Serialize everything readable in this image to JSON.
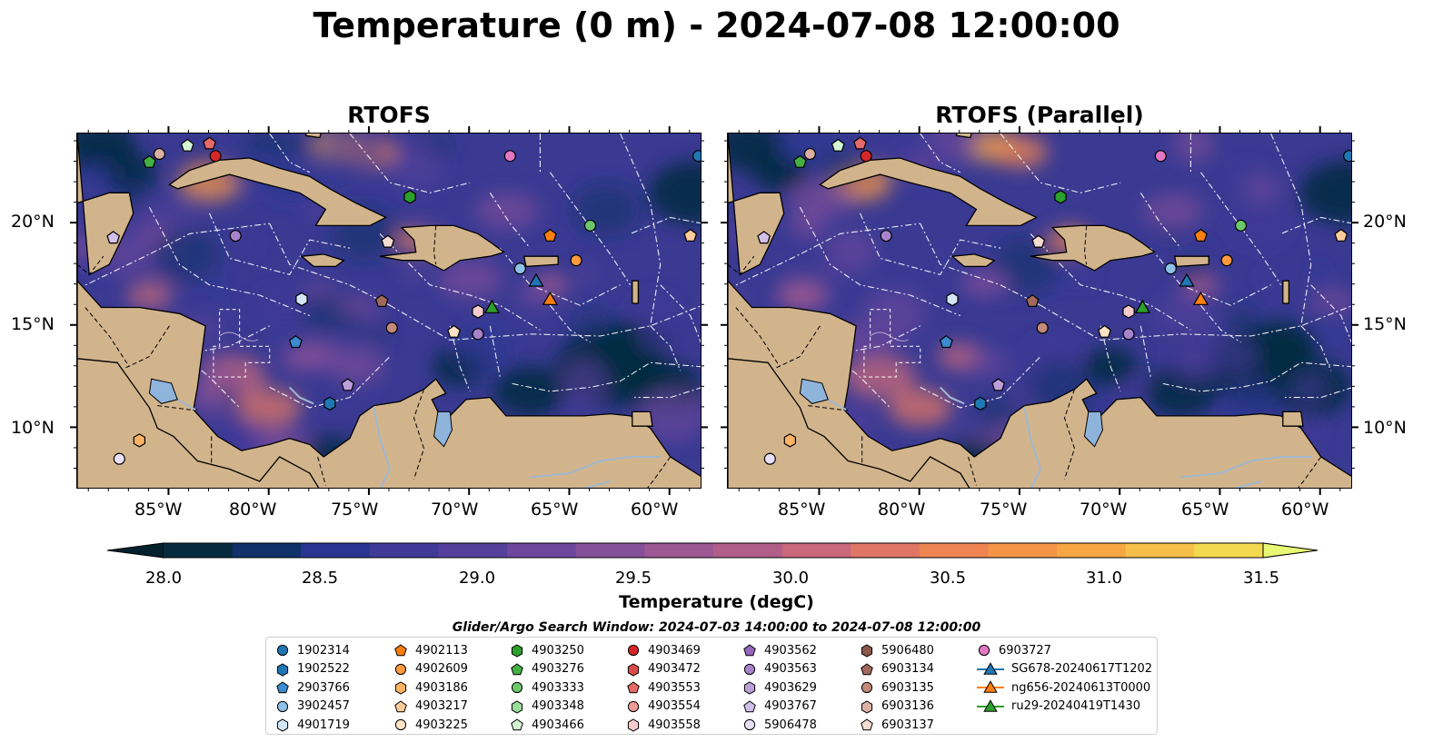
{
  "title": "Temperature (0 m) - 2024-07-08 12:00:00",
  "panels": [
    {
      "title": "RTOFS"
    },
    {
      "title": "RTOFS (Parallel)"
    }
  ],
  "lon_ticks": [
    "85°W",
    "80°W",
    "75°W",
    "70°W",
    "65°W",
    "60°W"
  ],
  "lat_ticks": [
    "20°N",
    "15°N",
    "10°N"
  ],
  "colorbar": {
    "label": "Temperature (degC)",
    "ticks": [
      "28.0",
      "28.5",
      "29.0",
      "29.5",
      "30.0",
      "30.5",
      "31.0",
      "31.5"
    ],
    "colors": [
      "#072b3e",
      "#10306a",
      "#2a3591",
      "#403998",
      "#553f9c",
      "#6e479c",
      "#854f99",
      "#9b5893",
      "#b05e89",
      "#c8687a",
      "#df7666",
      "#ee8452",
      "#f59547",
      "#f6a744",
      "#f6bf49",
      "#f2d94f"
    ],
    "extend_low": "#04212e",
    "extend_high": "#e9f874"
  },
  "legend": {
    "title": "Glider/Argo Search Window: 2024-07-03 14:00:00 to 2024-07-08 12:00:00",
    "columns": [
      [
        {
          "label": "1902314",
          "marker": "circle",
          "color": "#1f77b4"
        },
        {
          "label": "1902522",
          "marker": "hexagon",
          "color": "#1f77b4"
        },
        {
          "label": "2903766",
          "marker": "pentagon",
          "color": "#3a8bd0"
        },
        {
          "label": "3902457",
          "marker": "circle",
          "color": "#8fc1e8"
        },
        {
          "label": "4901719",
          "marker": "hexagon",
          "color": "#d2e6f6"
        }
      ],
      [
        {
          "label": "4902113",
          "marker": "pentagon",
          "color": "#ff7f0e"
        },
        {
          "label": "4902609",
          "marker": "circle",
          "color": "#ff9a3e"
        },
        {
          "label": "4903186",
          "marker": "hexagon",
          "color": "#ffb366"
        },
        {
          "label": "4903217",
          "marker": "pentagon",
          "color": "#ffcc99"
        },
        {
          "label": "4903225",
          "marker": "circle",
          "color": "#ffe3c4"
        }
      ],
      [
        {
          "label": "4903250",
          "marker": "hexagon",
          "color": "#2ca02c"
        },
        {
          "label": "4903276",
          "marker": "pentagon",
          "color": "#43b043"
        },
        {
          "label": "4903333",
          "marker": "circle",
          "color": "#6cc86c"
        },
        {
          "label": "4903348",
          "marker": "hexagon",
          "color": "#98dc98"
        },
        {
          "label": "4903466",
          "marker": "pentagon",
          "color": "#d4f4d4"
        }
      ],
      [
        {
          "label": "4903469",
          "marker": "circle",
          "color": "#d62728"
        },
        {
          "label": "4903472",
          "marker": "hexagon",
          "color": "#df4a4a"
        },
        {
          "label": "4903553",
          "marker": "pentagon",
          "color": "#e76a6a"
        },
        {
          "label": "4903554",
          "marker": "circle",
          "color": "#f09a9a"
        },
        {
          "label": "4903558",
          "marker": "hexagon",
          "color": "#f8cccc"
        }
      ],
      [
        {
          "label": "4903562",
          "marker": "pentagon",
          "color": "#9467bd"
        },
        {
          "label": "4903563",
          "marker": "circle",
          "color": "#a883cc"
        },
        {
          "label": "4903629",
          "marker": "hexagon",
          "color": "#bc9fdb"
        },
        {
          "label": "4903767",
          "marker": "pentagon",
          "color": "#d3c0ea"
        },
        {
          "label": "5906478",
          "marker": "circle",
          "color": "#e9dff7"
        }
      ],
      [
        {
          "label": "5906480",
          "marker": "hexagon",
          "color": "#8c564b"
        },
        {
          "label": "6903134",
          "marker": "pentagon",
          "color": "#a1695c"
        },
        {
          "label": "6903135",
          "marker": "circle",
          "color": "#c28a7a"
        },
        {
          "label": "6903136",
          "marker": "hexagon",
          "color": "#dbb0a2"
        },
        {
          "label": "6903137",
          "marker": "pentagon",
          "color": "#f4dcd3"
        }
      ],
      [
        {
          "label": "6903727",
          "marker": "circle",
          "color": "#e377c2"
        },
        {
          "label": "SG678-20240617T1202",
          "marker": "triangle-line",
          "color": "#1f77b4"
        },
        {
          "label": "ng656-20240613T0000",
          "marker": "triangle-line",
          "color": "#ff7f0e"
        },
        {
          "label": "ru29-20240419T1430",
          "marker": "triangle-line",
          "color": "#2ca02c"
        }
      ]
    ]
  },
  "map_extent": {
    "lon": [
      -89.6,
      -58.4
    ],
    "lat": [
      7.0,
      24.4
    ]
  },
  "map_colors": {
    "land": "#d2b48c",
    "ocean_base": "#3a3a93",
    "lakes": "#8fb4dc",
    "rivers": "#9fb8d0"
  },
  "markers": [
    {
      "id": "6903136",
      "lon": -85.5,
      "lat": 23.4,
      "shape": "circle",
      "color": "#dbb0a2"
    },
    {
      "id": "4903466",
      "lon": -84.1,
      "lat": 23.8,
      "shape": "pentagon",
      "color": "#d4f4d4"
    },
    {
      "id": "4903553",
      "lon": -83.0,
      "lat": 23.9,
      "shape": "pentagon",
      "color": "#e76a6a"
    },
    {
      "id": "4903469",
      "lon": -82.7,
      "lat": 23.3,
      "shape": "circle",
      "color": "#d62728"
    },
    {
      "id": "4903276",
      "lon": -86.0,
      "lat": 23.0,
      "shape": "pentagon",
      "color": "#43b043"
    },
    {
      "id": "4903250",
      "lon": -73.0,
      "lat": 21.3,
      "shape": "hexagon",
      "color": "#2ca02c"
    },
    {
      "id": "6903727",
      "lon": -68.0,
      "lat": 23.3,
      "shape": "circle",
      "color": "#e377c2"
    },
    {
      "id": "1902314",
      "lon": -58.6,
      "lat": 23.3,
      "shape": "circle",
      "color": "#1f77b4"
    },
    {
      "id": "4903333",
      "lon": -64.0,
      "lat": 19.9,
      "shape": "circle",
      "color": "#6cc86c"
    },
    {
      "id": "4902113",
      "lon": -66.0,
      "lat": 19.4,
      "shape": "pentagon",
      "color": "#ff7f0e"
    },
    {
      "id": "4903217",
      "lon": -59.0,
      "lat": 19.4,
      "shape": "pentagon",
      "color": "#ffcc99"
    },
    {
      "id": "4902609",
      "lon": -64.7,
      "lat": 18.2,
      "shape": "circle",
      "color": "#ff9a3e"
    },
    {
      "id": "3902457",
      "lon": -67.5,
      "lat": 17.8,
      "shape": "circle",
      "color": "#8fc1e8"
    },
    {
      "id": "4903767",
      "lon": -87.8,
      "lat": 19.3,
      "shape": "pentagon",
      "color": "#d3c0ea"
    },
    {
      "id": "4903563",
      "lon": -81.7,
      "lat": 19.4,
      "shape": "circle",
      "color": "#a883cc"
    },
    {
      "id": "6903137",
      "lon": -74.1,
      "lat": 19.1,
      "shape": "pentagon",
      "color": "#f4dcd3"
    },
    {
      "id": "4901719",
      "lon": -78.4,
      "lat": 16.3,
      "shape": "hexagon",
      "color": "#d2e6f6"
    },
    {
      "id": "6903134",
      "lon": -74.4,
      "lat": 16.2,
      "shape": "pentagon",
      "color": "#a1695c"
    },
    {
      "id": "6903135",
      "lon": -73.9,
      "lat": 14.9,
      "shape": "circle",
      "color": "#c28a7a"
    },
    {
      "id": "4903558",
      "lon": -69.6,
      "lat": 15.7,
      "shape": "hexagon",
      "color": "#f8cccc"
    },
    {
      "id": "4903225",
      "lon": -70.8,
      "lat": 14.7,
      "shape": "pentagon",
      "color": "#ffe3c4"
    },
    {
      "id": "4903562",
      "lon": -69.6,
      "lat": 14.6,
      "shape": "circle",
      "color": "#a883cc"
    },
    {
      "id": "2903766",
      "lon": -78.7,
      "lat": 14.2,
      "shape": "pentagon",
      "color": "#3a8bd0"
    },
    {
      "id": "4903629",
      "lon": -76.1,
      "lat": 12.1,
      "shape": "pentagon",
      "color": "#bc9fdb"
    },
    {
      "id": "1902522",
      "lon": -77.0,
      "lat": 11.2,
      "shape": "hexagon",
      "color": "#1f77b4"
    },
    {
      "id": "4903186",
      "lon": -86.5,
      "lat": 9.4,
      "shape": "hexagon",
      "color": "#ffb366"
    },
    {
      "id": "5906478",
      "lon": -87.5,
      "lat": 8.5,
      "shape": "circle",
      "color": "#e9dff7"
    },
    {
      "id": "SG678-20240617T1202",
      "lon": -66.7,
      "lat": 17.2,
      "shape": "triangle",
      "color": "#1f77b4"
    },
    {
      "id": "ng656-20240613T0000",
      "lon": -66.0,
      "lat": 16.3,
      "shape": "triangle",
      "color": "#ff7f0e"
    },
    {
      "id": "ru29-20240419T1430",
      "lon": -68.9,
      "lat": 15.9,
      "shape": "triangle",
      "color": "#2ca02c"
    }
  ]
}
